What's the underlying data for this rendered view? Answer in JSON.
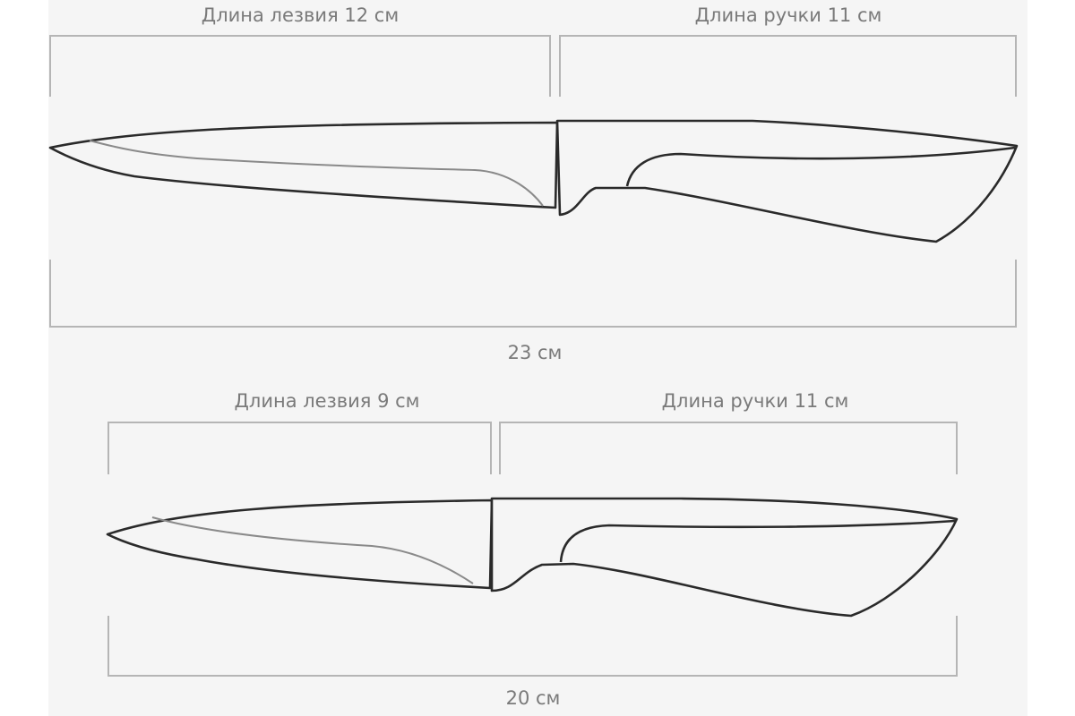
{
  "knife_large": {
    "blade_label": "Длина лезвия 12 см",
    "handle_label": "Длина ручки 11 см",
    "total_label": "23 см"
  },
  "knife_small": {
    "blade_label": "Длина лезвия 9 см",
    "handle_label": "Длина ручки 11 см",
    "total_label": "20 см"
  },
  "colors": {
    "panel": "#f5f5f5",
    "outline": "#2a2a2a",
    "dimension": "#b5b5b5",
    "text": "#7a7a7a"
  }
}
